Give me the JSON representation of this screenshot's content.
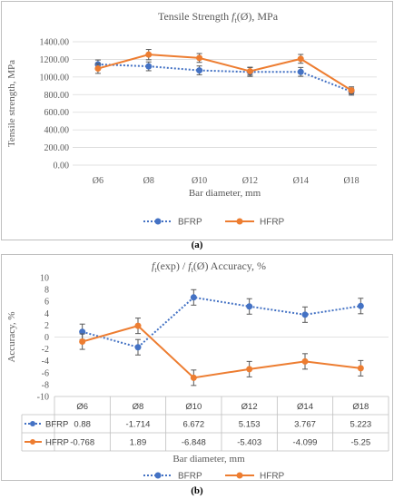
{
  "colors": {
    "bfrp": "#4472C4",
    "hfrp": "#ED7D31",
    "grid": "#D9D9D9",
    "frame": "#BFBFBF",
    "errorbar": "#595959"
  },
  "chart_data": [
    {
      "panel_label": "(a)",
      "type": "line",
      "title_parts": [
        "Tensile Strength ",
        "f",
        "t",
        "(Ø), MPa"
      ],
      "xlabel": "Bar diameter, mm",
      "ylabel": "Tensile strength, MPa",
      "categories": [
        "Ø6",
        "Ø8",
        "Ø10",
        "Ø12",
        "Ø14",
        "Ø18"
      ],
      "ylim": [
        0,
        1400
      ],
      "yticks": [
        "0.00",
        "200.00",
        "400.00",
        "600.00",
        "800.00",
        "1000.00",
        "1200.00",
        "1400.00"
      ],
      "grid": true,
      "legend_position": "bottom",
      "series": [
        {
          "name": "BFRP",
          "style": "dotted",
          "marker": "circle",
          "values": [
            1143,
            1121,
            1075,
            1057,
            1058,
            834
          ],
          "errors": [
            50,
            50,
            50,
            50,
            50,
            40
          ]
        },
        {
          "name": "HFRP",
          "style": "solid",
          "marker": "circle",
          "values": [
            1096,
            1254,
            1216,
            1066,
            1206,
            848
          ],
          "errors": [
            55,
            58,
            50,
            45,
            50,
            40
          ]
        }
      ]
    },
    {
      "panel_label": "(b)",
      "type": "line",
      "title_parts": [
        "f",
        "t",
        "(exp) / ",
        "f",
        "t",
        "(Ø) Accuracy, %"
      ],
      "xlabel": "Bar diameter, mm",
      "ylabel": "Accuracy, %",
      "categories": [
        "Ø6",
        "Ø8",
        "Ø10",
        "Ø12",
        "Ø14",
        "Ø18"
      ],
      "ylim": [
        -10,
        10
      ],
      "yticks": [
        "-10",
        "-8",
        "-6",
        "-4",
        "-2",
        "0",
        "2",
        "4",
        "6",
        "8",
        "10"
      ],
      "grid": false,
      "legend_position": "bottom",
      "series": [
        {
          "name": "BFRP",
          "style": "dotted",
          "marker": "circle",
          "values": [
            0.88,
            -1.714,
            6.672,
            5.153,
            3.767,
            5.223
          ],
          "labels": [
            "0.88",
            "-1.714",
            "6.672",
            "5.153",
            "3.767",
            "5.223"
          ],
          "errors": [
            1.3,
            1.3,
            1.3,
            1.3,
            1.3,
            1.3
          ]
        },
        {
          "name": "HFRP",
          "style": "solid",
          "marker": "circle",
          "values": [
            -0.768,
            1.89,
            -6.848,
            -5.403,
            -4.099,
            -5.25
          ],
          "labels": [
            "-0.768",
            "1.89",
            "-6.848",
            "-5.403",
            "-4.099",
            "-5.25"
          ],
          "errors": [
            1.3,
            1.3,
            1.3,
            1.3,
            1.3,
            1.3
          ]
        }
      ]
    }
  ]
}
